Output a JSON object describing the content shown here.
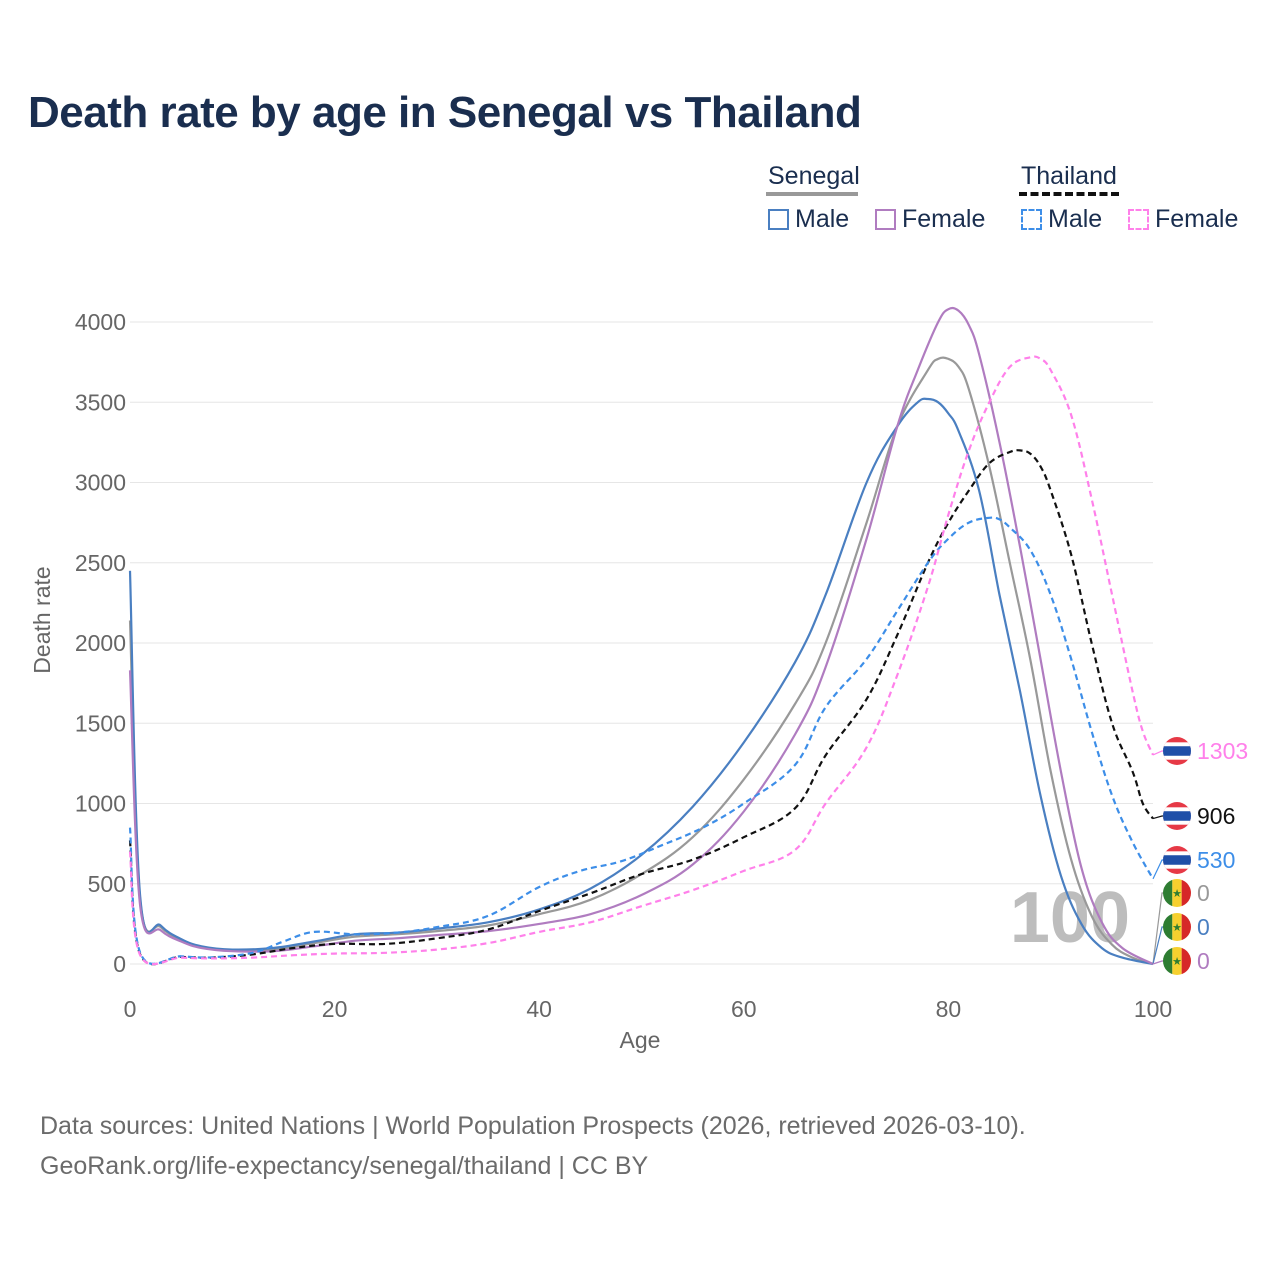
{
  "title": "Death rate by age in Senegal vs Thailand",
  "legend": {
    "senegal_label": "Senegal",
    "thailand_label": "Thailand",
    "male_label": "Male",
    "female_label": "Female"
  },
  "footer": {
    "line1": "Data sources: United Nations | World Population Prospects (2026, retrieved 2026-03-10).",
    "line2": "GeoRank.org/life-expectancy/senegal/thailand | CC BY"
  },
  "colors": {
    "senegal_male": "#4a7fc1",
    "senegal_female": "#b07cc0",
    "senegal_total": "#999999",
    "thailand_male": "#3d8ee8",
    "thailand_female": "#ff80ea",
    "thailand_total": "#111111",
    "grid": "#e6e6e6",
    "axis_text": "#666666",
    "watermark": "#bdbdbd"
  },
  "chart_data": {
    "type": "line",
    "title": "Death rate by age in Senegal vs Thailand",
    "xlabel": "Age",
    "ylabel": "Death rate",
    "xlim": [
      0,
      100
    ],
    "ylim": [
      0,
      4200
    ],
    "xticks": [
      0,
      20,
      40,
      60,
      80,
      100
    ],
    "yticks": [
      0,
      500,
      1000,
      1500,
      2000,
      2500,
      3000,
      3500,
      4000
    ],
    "grid": true,
    "legend_position": "top-right",
    "current_age_label": "100",
    "series": [
      {
        "key": "senegal_total",
        "name": "Senegal",
        "dashed": false,
        "points": [
          [
            0,
            2140
          ],
          [
            1,
            400
          ],
          [
            3,
            230
          ],
          [
            5,
            150
          ],
          [
            7,
            105
          ],
          [
            10,
            85
          ],
          [
            14,
            90
          ],
          [
            18,
            130
          ],
          [
            22,
            170
          ],
          [
            26,
            185
          ],
          [
            30,
            205
          ],
          [
            35,
            240
          ],
          [
            40,
            310
          ],
          [
            45,
            400
          ],
          [
            50,
            560
          ],
          [
            55,
            790
          ],
          [
            60,
            1150
          ],
          [
            65,
            1620
          ],
          [
            68,
            2000
          ],
          [
            72,
            2750
          ],
          [
            75,
            3350
          ],
          [
            78,
            3700
          ],
          [
            79,
            3770
          ],
          [
            80,
            3770
          ],
          [
            81,
            3720
          ],
          [
            82,
            3580
          ],
          [
            84,
            3100
          ],
          [
            86,
            2500
          ],
          [
            88,
            1900
          ],
          [
            90,
            1200
          ],
          [
            92,
            650
          ],
          [
            94,
            300
          ],
          [
            96,
            120
          ],
          [
            98,
            40
          ],
          [
            100,
            0
          ]
        ]
      },
      {
        "key": "senegal_male",
        "name": "Senegal Male",
        "dashed": false,
        "points": [
          [
            0,
            2450
          ],
          [
            1,
            420
          ],
          [
            3,
            240
          ],
          [
            5,
            155
          ],
          [
            7,
            110
          ],
          [
            10,
            90
          ],
          [
            14,
            100
          ],
          [
            18,
            140
          ],
          [
            22,
            185
          ],
          [
            26,
            195
          ],
          [
            30,
            220
          ],
          [
            35,
            260
          ],
          [
            40,
            340
          ],
          [
            45,
            470
          ],
          [
            50,
            680
          ],
          [
            55,
            980
          ],
          [
            60,
            1380
          ],
          [
            65,
            1880
          ],
          [
            68,
            2300
          ],
          [
            72,
            3000
          ],
          [
            75,
            3350
          ],
          [
            77,
            3500
          ],
          [
            78,
            3520
          ],
          [
            79,
            3500
          ],
          [
            80,
            3430
          ],
          [
            81,
            3320
          ],
          [
            83,
            2950
          ],
          [
            85,
            2300
          ],
          [
            87,
            1700
          ],
          [
            89,
            1050
          ],
          [
            91,
            550
          ],
          [
            93,
            250
          ],
          [
            95,
            100
          ],
          [
            97,
            40
          ],
          [
            100,
            0
          ]
        ]
      },
      {
        "key": "senegal_female",
        "name": "Senegal Female",
        "dashed": false,
        "points": [
          [
            0,
            1830
          ],
          [
            1,
            360
          ],
          [
            3,
            210
          ],
          [
            5,
            140
          ],
          [
            7,
            100
          ],
          [
            10,
            80
          ],
          [
            14,
            80
          ],
          [
            18,
            110
          ],
          [
            22,
            145
          ],
          [
            26,
            160
          ],
          [
            30,
            180
          ],
          [
            35,
            205
          ],
          [
            40,
            250
          ],
          [
            45,
            310
          ],
          [
            50,
            430
          ],
          [
            55,
            620
          ],
          [
            60,
            950
          ],
          [
            65,
            1430
          ],
          [
            68,
            1850
          ],
          [
            72,
            2650
          ],
          [
            75,
            3350
          ],
          [
            77,
            3700
          ],
          [
            79,
            4000
          ],
          [
            80,
            4080
          ],
          [
            81,
            4070
          ],
          [
            82,
            3980
          ],
          [
            83,
            3800
          ],
          [
            85,
            3250
          ],
          [
            87,
            2600
          ],
          [
            89,
            1900
          ],
          [
            91,
            1200
          ],
          [
            93,
            600
          ],
          [
            95,
            260
          ],
          [
            97,
            100
          ],
          [
            100,
            0
          ]
        ]
      },
      {
        "key": "thailand_total",
        "name": "Thailand",
        "dashed": true,
        "points": [
          [
            0,
            770
          ],
          [
            1,
            60
          ],
          [
            5,
            45
          ],
          [
            8,
            40
          ],
          [
            12,
            60
          ],
          [
            16,
            100
          ],
          [
            20,
            125
          ],
          [
            25,
            125
          ],
          [
            30,
            160
          ],
          [
            35,
            215
          ],
          [
            40,
            330
          ],
          [
            45,
            440
          ],
          [
            50,
            560
          ],
          [
            55,
            650
          ],
          [
            60,
            790
          ],
          [
            65,
            970
          ],
          [
            68,
            1300
          ],
          [
            72,
            1650
          ],
          [
            75,
            2050
          ],
          [
            78,
            2500
          ],
          [
            80,
            2750
          ],
          [
            82,
            2950
          ],
          [
            84,
            3120
          ],
          [
            86,
            3190
          ],
          [
            87,
            3200
          ],
          [
            88,
            3180
          ],
          [
            89,
            3100
          ],
          [
            90,
            2950
          ],
          [
            92,
            2550
          ],
          [
            94,
            2000
          ],
          [
            96,
            1500
          ],
          [
            98,
            1200
          ],
          [
            99,
            1000
          ],
          [
            100,
            906
          ]
        ]
      },
      {
        "key": "thailand_male",
        "name": "Thailand Male",
        "dashed": true,
        "points": [
          [
            0,
            850
          ],
          [
            1,
            70
          ],
          [
            5,
            48
          ],
          [
            8,
            42
          ],
          [
            12,
            70
          ],
          [
            15,
            140
          ],
          [
            18,
            200
          ],
          [
            22,
            185
          ],
          [
            26,
            195
          ],
          [
            30,
            230
          ],
          [
            35,
            300
          ],
          [
            40,
            480
          ],
          [
            44,
            580
          ],
          [
            48,
            640
          ],
          [
            52,
            740
          ],
          [
            56,
            850
          ],
          [
            60,
            1000
          ],
          [
            65,
            1240
          ],
          [
            68,
            1600
          ],
          [
            72,
            1900
          ],
          [
            75,
            2200
          ],
          [
            78,
            2500
          ],
          [
            80,
            2650
          ],
          [
            82,
            2750
          ],
          [
            84,
            2780
          ],
          [
            85,
            2770
          ],
          [
            86,
            2720
          ],
          [
            88,
            2580
          ],
          [
            90,
            2300
          ],
          [
            92,
            1900
          ],
          [
            94,
            1450
          ],
          [
            96,
            1050
          ],
          [
            98,
            760
          ],
          [
            100,
            530
          ]
        ]
      },
      {
        "key": "thailand_female",
        "name": "Thailand Female",
        "dashed": true,
        "points": [
          [
            0,
            700
          ],
          [
            1,
            55
          ],
          [
            5,
            40
          ],
          [
            8,
            35
          ],
          [
            12,
            40
          ],
          [
            16,
            55
          ],
          [
            20,
            65
          ],
          [
            25,
            70
          ],
          [
            30,
            90
          ],
          [
            35,
            130
          ],
          [
            40,
            200
          ],
          [
            45,
            260
          ],
          [
            50,
            360
          ],
          [
            55,
            460
          ],
          [
            60,
            580
          ],
          [
            65,
            710
          ],
          [
            68,
            1000
          ],
          [
            72,
            1350
          ],
          [
            75,
            1800
          ],
          [
            78,
            2350
          ],
          [
            80,
            2800
          ],
          [
            82,
            3200
          ],
          [
            84,
            3500
          ],
          [
            86,
            3720
          ],
          [
            88,
            3780
          ],
          [
            89,
            3770
          ],
          [
            90,
            3700
          ],
          [
            92,
            3420
          ],
          [
            94,
            2900
          ],
          [
            96,
            2300
          ],
          [
            98,
            1700
          ],
          [
            99,
            1450
          ],
          [
            100,
            1303
          ]
        ]
      }
    ],
    "end_labels": [
      {
        "country": "thailand",
        "series": "thailand_female",
        "value": 1303,
        "label": "1303"
      },
      {
        "country": "thailand",
        "series": "thailand_total",
        "value": 906,
        "label": "906"
      },
      {
        "country": "thailand",
        "series": "thailand_male",
        "value": 530,
        "label": "530"
      },
      {
        "country": "senegal",
        "series": "senegal_total",
        "value": 0,
        "label": "0"
      },
      {
        "country": "senegal",
        "series": "senegal_male",
        "value": 0,
        "label": "0"
      },
      {
        "country": "senegal",
        "series": "senegal_female",
        "value": 0,
        "label": "0"
      }
    ]
  }
}
